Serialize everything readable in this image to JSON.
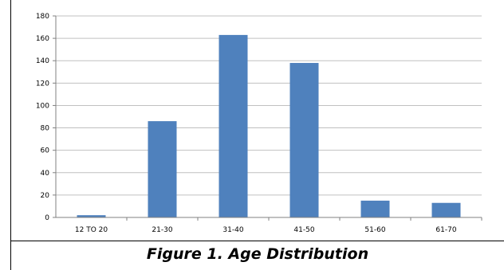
{
  "caption": "Figure 1. Age Distribution",
  "chart_data": {
    "type": "bar",
    "title": "",
    "xlabel": "",
    "ylabel": "",
    "categories": [
      "12 TO 20",
      "21-30",
      "31-40",
      "41-50",
      "51-60",
      "61-70"
    ],
    "values": [
      2,
      86,
      163,
      138,
      15,
      13
    ],
    "ylim": [
      0,
      180
    ],
    "yticks": [
      0,
      20,
      40,
      60,
      80,
      100,
      120,
      140,
      160,
      180
    ],
    "grid": true,
    "legend": "none",
    "bar_color": "#4f81bd",
    "grid_color": "#c0c0c0"
  }
}
